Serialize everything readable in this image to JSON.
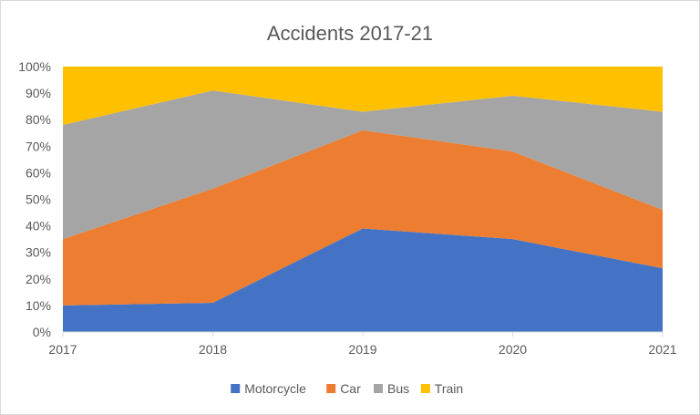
{
  "chart_data": {
    "type": "area",
    "stacked": "percent",
    "title": "Accidents 2017-21",
    "x": [
      "2017",
      "2018",
      "2019",
      "2020",
      "2021"
    ],
    "ylim": [
      0,
      100
    ],
    "y_ticks": [
      "0%",
      "10%",
      "20%",
      "30%",
      "40%",
      "50%",
      "60%",
      "70%",
      "80%",
      "90%",
      "100%"
    ],
    "grid": false,
    "legend_position": "bottom",
    "series": [
      {
        "name": "Motorcycle",
        "color": "#4472C4",
        "values": [
          10,
          11,
          39,
          35,
          24
        ]
      },
      {
        "name": "Car",
        "color": "#ED7D31",
        "values": [
          25,
          43,
          37,
          33,
          22
        ]
      },
      {
        "name": "Bus",
        "color": "#A5A5A5",
        "values": [
          43,
          37,
          7,
          21,
          37
        ]
      },
      {
        "name": "Train",
        "color": "#FFC000",
        "values": [
          22,
          9,
          17,
          11,
          17
        ]
      }
    ]
  }
}
